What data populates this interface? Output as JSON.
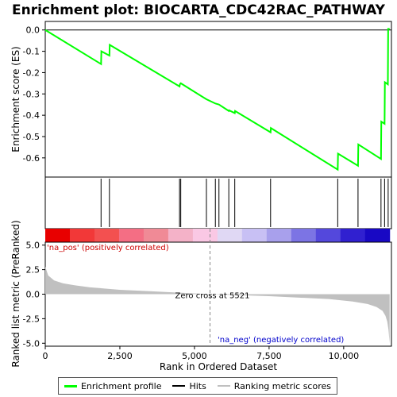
{
  "chart_data": {
    "type": "line",
    "title": "Enrichment plot: BIOCARTA_CDC42RAC_PATHWAY",
    "xlabel": "Rank in Ordered Dataset",
    "ylabel_top": "Enrichment score (ES)",
    "ylabel_bottom": "Ranked list metric (PreRanked)",
    "x_ticks": [
      0,
      2500,
      5000,
      7500,
      10000
    ],
    "x_tick_labels": [
      "0",
      "2,500",
      "5,000",
      "7,500",
      "10,000"
    ],
    "es_ylim": [
      -0.69,
      0.04
    ],
    "es_y_ticks": [
      0.0,
      -0.1,
      -0.2,
      -0.3,
      -0.4,
      -0.5,
      -0.6
    ],
    "es_y_tick_labels": [
      "0.0",
      "-0.1",
      "-0.2",
      "-0.3",
      "-0.4",
      "-0.5",
      "-0.6"
    ],
    "metric_ylim": [
      -5.3,
      5.3
    ],
    "metric_y_ticks": [
      5.0,
      2.5,
      0.0,
      -2.5,
      -5.0
    ],
    "metric_y_tick_labels": [
      "5.0",
      "2.5",
      "0.0",
      "-2.5",
      "-5.0"
    ],
    "xlim": [
      0,
      11600
    ],
    "enrichment_profile": [
      [
        0,
        0.0
      ],
      [
        1870,
        -0.16
      ],
      [
        1880,
        -0.1
      ],
      [
        2150,
        -0.12
      ],
      [
        2160,
        -0.07
      ],
      [
        4500,
        -0.265
      ],
      [
        4510,
        -0.255
      ],
      [
        4540,
        -0.25
      ],
      [
        5400,
        -0.325
      ],
      [
        5700,
        -0.345
      ],
      [
        5820,
        -0.35
      ],
      [
        6150,
        -0.38
      ],
      [
        6160,
        -0.377
      ],
      [
        6350,
        -0.39
      ],
      [
        6360,
        -0.38
      ],
      [
        7550,
        -0.48
      ],
      [
        7560,
        -0.46
      ],
      [
        9800,
        -0.655
      ],
      [
        9810,
        -0.58
      ],
      [
        10480,
        -0.637
      ],
      [
        10490,
        -0.537
      ],
      [
        11250,
        -0.605
      ],
      [
        11260,
        -0.43
      ],
      [
        11370,
        -0.44
      ],
      [
        11380,
        -0.245
      ],
      [
        11480,
        -0.255
      ],
      [
        11490,
        0.005
      ],
      [
        11540,
        0.005
      ]
    ],
    "hits": [
      1870,
      2150,
      4500,
      4540,
      5400,
      5700,
      5820,
      6150,
      6350,
      7550,
      9800,
      10480,
      11250,
      11370,
      11490
    ],
    "ranked_metric": [
      [
        0,
        2.8
      ],
      [
        100,
        1.9
      ],
      [
        300,
        1.4
      ],
      [
        600,
        1.1
      ],
      [
        1000,
        0.9
      ],
      [
        1500,
        0.7
      ],
      [
        2500,
        0.45
      ],
      [
        3500,
        0.3
      ],
      [
        4500,
        0.15
      ],
      [
        5521,
        0.0
      ],
      [
        6500,
        -0.1
      ],
      [
        7500,
        -0.2
      ],
      [
        8500,
        -0.35
      ],
      [
        9500,
        -0.5
      ],
      [
        10300,
        -0.75
      ],
      [
        10800,
        -1.0
      ],
      [
        11100,
        -1.3
      ],
      [
        11300,
        -1.7
      ],
      [
        11400,
        -2.2
      ],
      [
        11460,
        -2.8
      ],
      [
        11500,
        -3.6
      ],
      [
        11540,
        -5.0
      ]
    ],
    "zero_cross": 5521,
    "annotations": {
      "pos_label": "'na_pos' (positively correlated)",
      "neg_label": "'na_neg' (negatively correlated)",
      "zero_cross_label": "Zero cross at 5521"
    },
    "heatmap_colors": [
      "#e80000",
      "#f23838",
      "#f35050",
      "#f46e84",
      "#f08a96",
      "#f4b2c8",
      "#fac8e4",
      "#e0d8f4",
      "#c8c0f4",
      "#a8a0ec",
      "#7c74e4",
      "#5448dc",
      "#3020d0",
      "#1808c4"
    ],
    "legend": [
      "Enrichment profile",
      "Hits",
      "Ranking metric scores"
    ],
    "colors": {
      "profile": "#00ff00",
      "hits": "#000000",
      "metric": "#c0c0c0",
      "pos_text": "#cc0000",
      "neg_text": "#0000cc"
    }
  }
}
